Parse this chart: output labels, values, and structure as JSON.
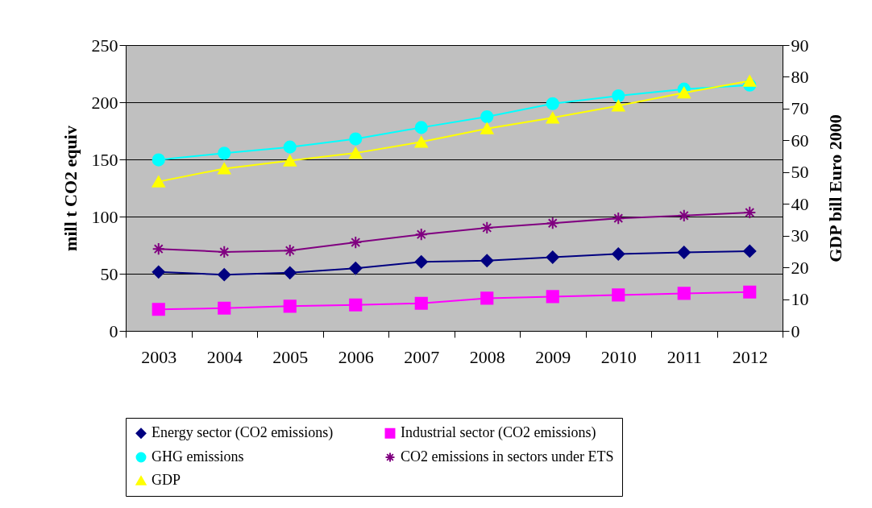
{
  "chart_data": {
    "type": "line",
    "categories": [
      "2003",
      "2004",
      "2005",
      "2006",
      "2007",
      "2008",
      "2009",
      "2010",
      "2011",
      "2012"
    ],
    "series": [
      {
        "name": "Energy sector (CO2 emissions)",
        "color": "#000080",
        "marker": "diamond",
        "values": [
          51.5,
          49.2,
          50.8,
          54.7,
          60.4,
          61.4,
          64.5,
          67.3,
          68.7,
          69.8
        ]
      },
      {
        "name": "Industrial sector (CO2 emissions)",
        "color": "#ff00ff",
        "marker": "square",
        "values": [
          18.8,
          19.9,
          21.6,
          22.7,
          24.1,
          28.6,
          30.0,
          31.4,
          32.8,
          34.0
        ]
      },
      {
        "name": "GHG emissions",
        "color": "#00ffff",
        "marker": "circle",
        "values": [
          149.6,
          155.4,
          160.8,
          167.9,
          177.9,
          187.3,
          198.8,
          205.6,
          211.5,
          215.0
        ]
      },
      {
        "name": "CO2 emissions in sectors under ETS",
        "color": "#800080",
        "marker": "cross",
        "values": [
          71.7,
          69.1,
          70.3,
          77.4,
          84.4,
          90.2,
          94.2,
          98.5,
          100.8,
          103.6
        ]
      },
      {
        "name": "GDP",
        "color": "#ffff00",
        "marker": "triangle",
        "axis": "y2",
        "values": [
          47.0,
          51.1,
          53.6,
          56.0,
          59.5,
          63.7,
          67.1,
          70.9,
          75.0,
          78.7
        ]
      }
    ],
    "ylabel": "mill t CO2 equiv",
    "y2label": "GDP  bill Euro 2000",
    "ylim": [
      0,
      250
    ],
    "yticks": [
      0,
      50,
      100,
      150,
      200,
      250
    ],
    "y2lim": [
      0,
      90
    ],
    "y2ticks": [
      0,
      10,
      20,
      30,
      40,
      50,
      60,
      70,
      80,
      90
    ],
    "grid": "y",
    "legend": "bottom"
  }
}
